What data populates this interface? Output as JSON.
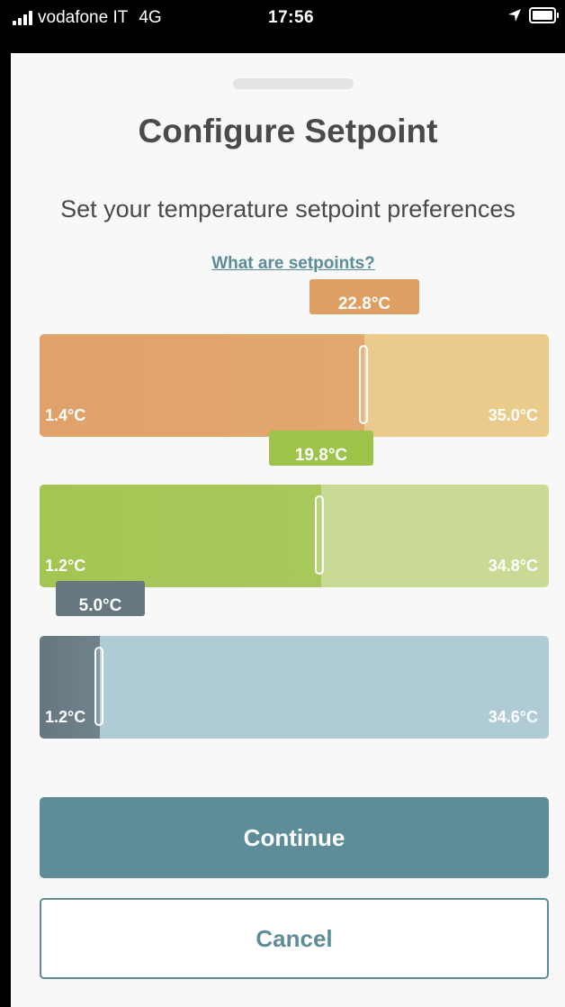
{
  "status_bar": {
    "carrier": "vodafone IT",
    "network": "4G",
    "time": "17:56",
    "icons": [
      "signal-bars-icon",
      "location-arrow-icon",
      "battery-icon"
    ]
  },
  "header": {
    "title": "Configure Setpoint",
    "subtitle": "Set your temperature setpoint preferences",
    "help_link": "What are setpoints?"
  },
  "sliders": [
    {
      "name": "heat",
      "value_label": "22.8°C",
      "min_label": "1.4°C",
      "max_label": "35.0°C",
      "colors": {
        "fill": "#e0a26a",
        "remaining": "#ebcb8c",
        "bubble": "#df9f63"
      }
    },
    {
      "name": "comfort",
      "value_label": "19.8°C",
      "min_label": "1.2°C",
      "max_label": "34.8°C",
      "colors": {
        "fill": "#a4c553",
        "remaining": "#c9da95",
        "bubble": "#9dc34a"
      }
    },
    {
      "name": "cool",
      "value_label": "5.0°C",
      "min_label": "1.2°C",
      "max_label": "34.6°C",
      "colors": {
        "fill": "#66777f",
        "remaining": "#aecbd6",
        "bubble": "#66777f"
      }
    }
  ],
  "actions": {
    "continue_label": "Continue",
    "cancel_label": "Cancel"
  },
  "colors": {
    "primary": "#5e8c99",
    "title_text": "#4a4a4a",
    "sheet_background": "#f8f8f8"
  }
}
